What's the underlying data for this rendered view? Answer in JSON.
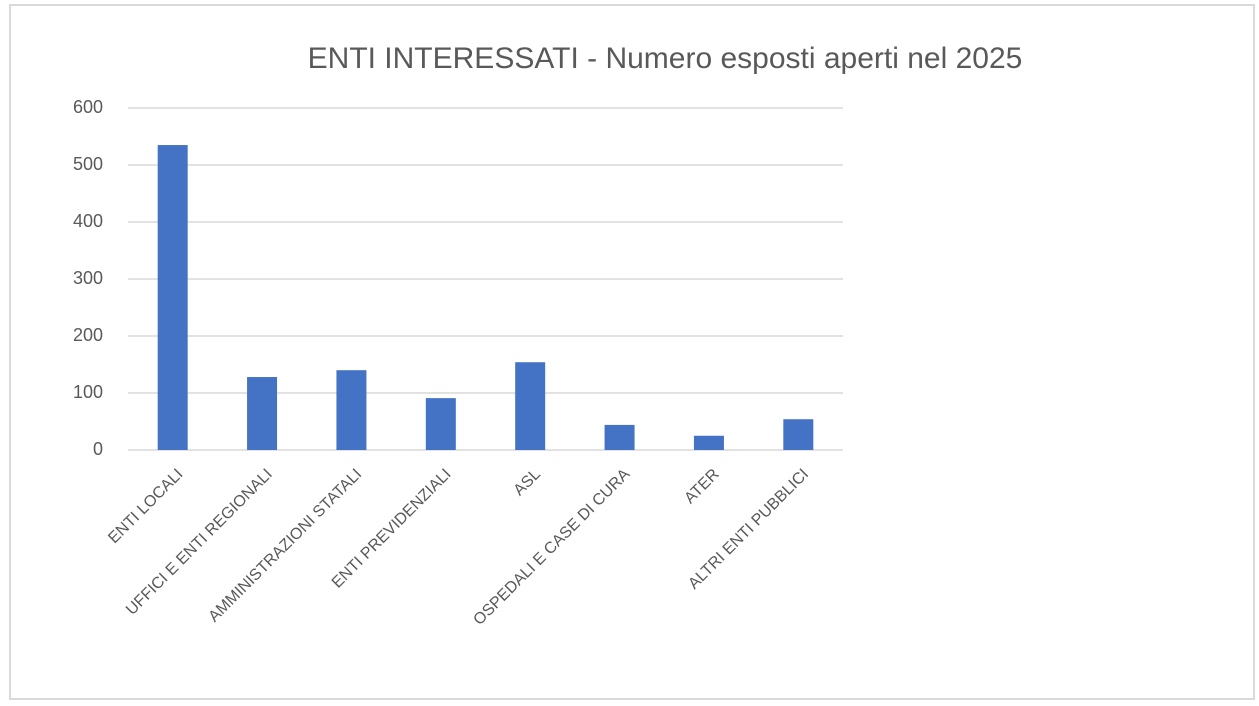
{
  "chart_data": {
    "type": "bar",
    "title": "ENTI INTERESSATI - Numero esposti aperti nel 2025",
    "categories": [
      "ENTI LOCALI",
      "UFFICI E ENTI REGIONALI",
      "AMMINISTRAZIONI STATALI",
      "ENTI PREVIDENZIALI",
      "ASL",
      "OSPEDALI E CASE DI CURA",
      "ATER",
      "ALTRI ENTI PUBBLICI"
    ],
    "values": [
      535,
      128,
      140,
      91,
      154,
      44,
      25,
      54
    ],
    "color": "#4472c4",
    "ylim": [
      0,
      600
    ],
    "yticks": [
      0,
      100,
      200,
      300,
      400,
      500,
      600
    ],
    "grid": true
  }
}
